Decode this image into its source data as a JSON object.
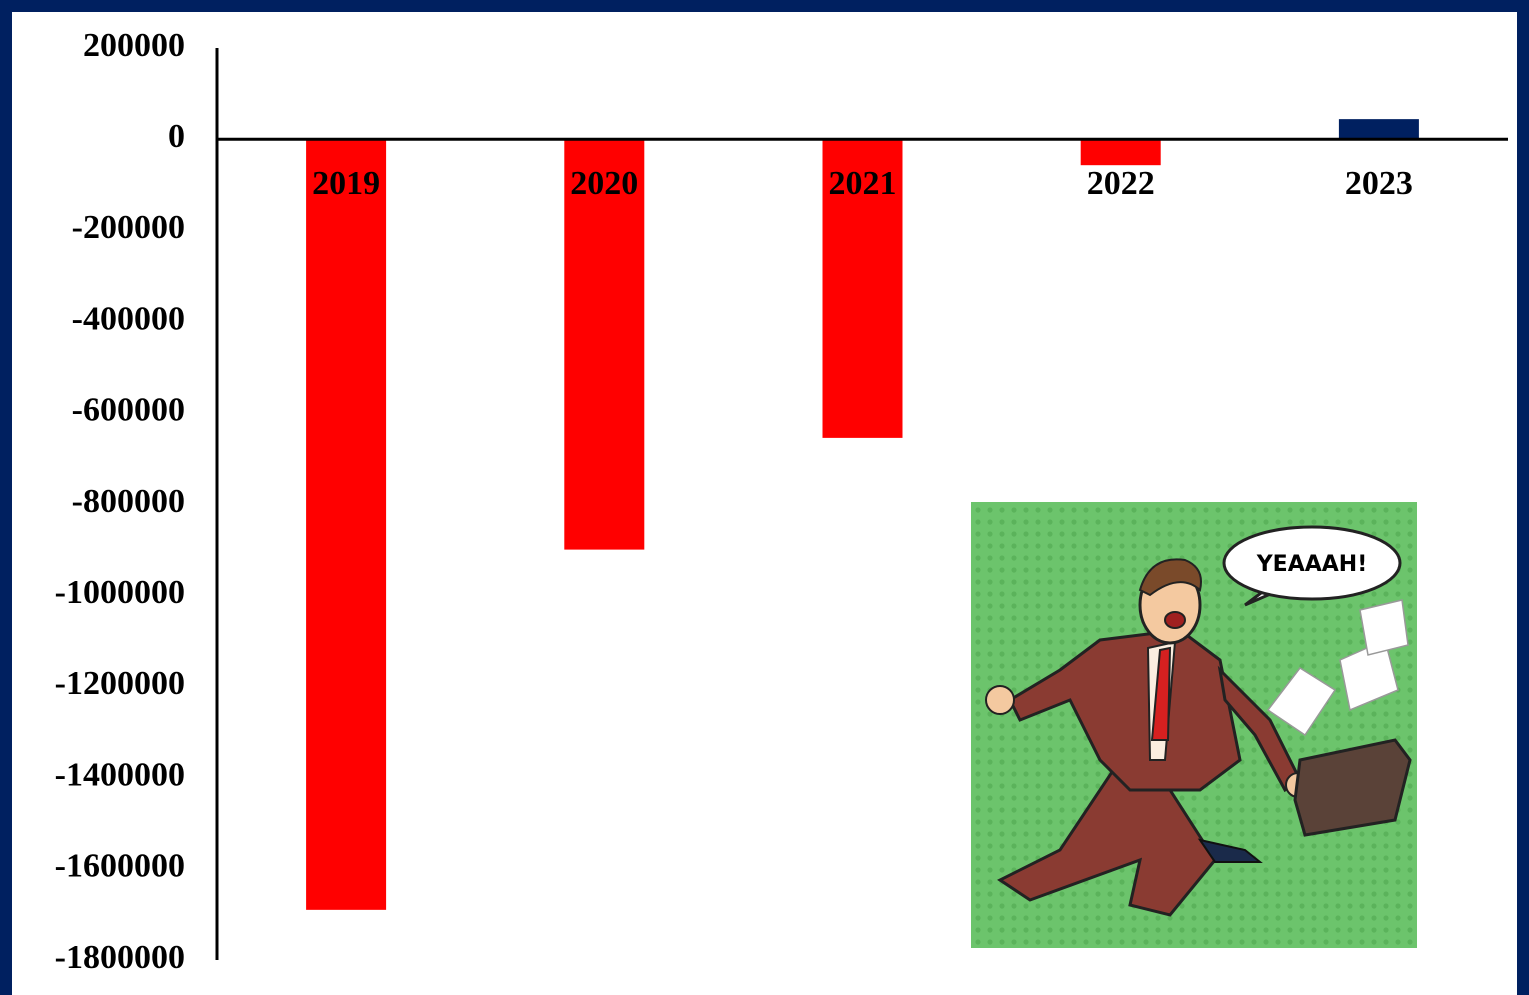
{
  "chart_data": {
    "type": "bar",
    "categories": [
      "2019",
      "2020",
      "2021",
      "2022",
      "2023"
    ],
    "values": [
      -1690000,
      -900000,
      -655000,
      -57000,
      44000
    ],
    "colors": [
      "#ff0000",
      "#ff0000",
      "#ff0000",
      "#ff0000",
      "#002060"
    ],
    "ylim": [
      -1800000,
      200000
    ],
    "yticks": [
      200000,
      0,
      -200000,
      -400000,
      -600000,
      -800000,
      -1000000,
      -1200000,
      -1400000,
      -1600000,
      -1800000
    ],
    "grid": false,
    "annotations": [
      "YEAAAH!"
    ]
  }
}
